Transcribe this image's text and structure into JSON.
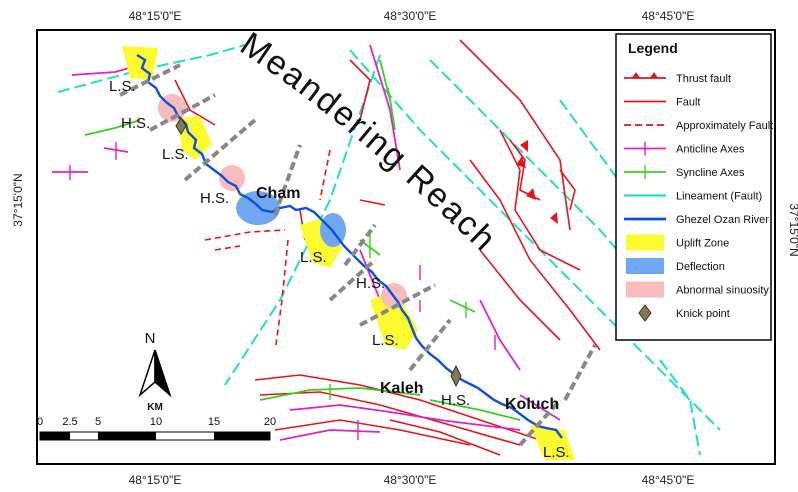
{
  "coords": {
    "top": [
      "48°15'0\"E",
      "48°30'0\"E",
      "48°45'0\"E"
    ],
    "bottom": [
      "48°15'0\"E",
      "48°30'0\"E",
      "48°45'0\"E"
    ],
    "left": "37°15'0\"N",
    "right": "37°15'0\"N"
  },
  "title": "Meandering Reach",
  "labels": {
    "ls": "L.S.",
    "hs": "H.S.",
    "cham": "Cham",
    "kaleh": "Kaleh",
    "koluch": "Koluch"
  },
  "legend": {
    "title": "Legend",
    "items": [
      {
        "label": "Thrust fault",
        "symbol": "thrust",
        "color": "#e8141c"
      },
      {
        "label": "Fault",
        "symbol": "line",
        "color": "#e8141c"
      },
      {
        "label": "Approximately Fault",
        "symbol": "dash",
        "color": "#e8141c"
      },
      {
        "label": "Anticline Axes",
        "symbol": "anticline",
        "color": "#e020c8"
      },
      {
        "label": "Syncline Axes",
        "symbol": "syncline",
        "color": "#38d020"
      },
      {
        "label": "Lineament (Fault)",
        "symbol": "lineament",
        "color": "#20e0c0"
      },
      {
        "label": "Ghezel Ozan River",
        "symbol": "river",
        "color": "#1050d8"
      },
      {
        "label": "Uplift Zone",
        "symbol": "box",
        "color": "#fbfb30"
      },
      {
        "label": "Deflection",
        "symbol": "box",
        "color": "#6fa8f0"
      },
      {
        "label": "Abnormal sinuosity",
        "symbol": "box",
        "color": "#f7bcbc"
      },
      {
        "label": "Knick point",
        "symbol": "diamond",
        "color": "#8a7650"
      }
    ]
  },
  "north": {
    "label": "N",
    "unit": "KM"
  },
  "scale": {
    "ticks": [
      "0",
      "2.5",
      "5",
      "10",
      "15",
      "20"
    ]
  }
}
